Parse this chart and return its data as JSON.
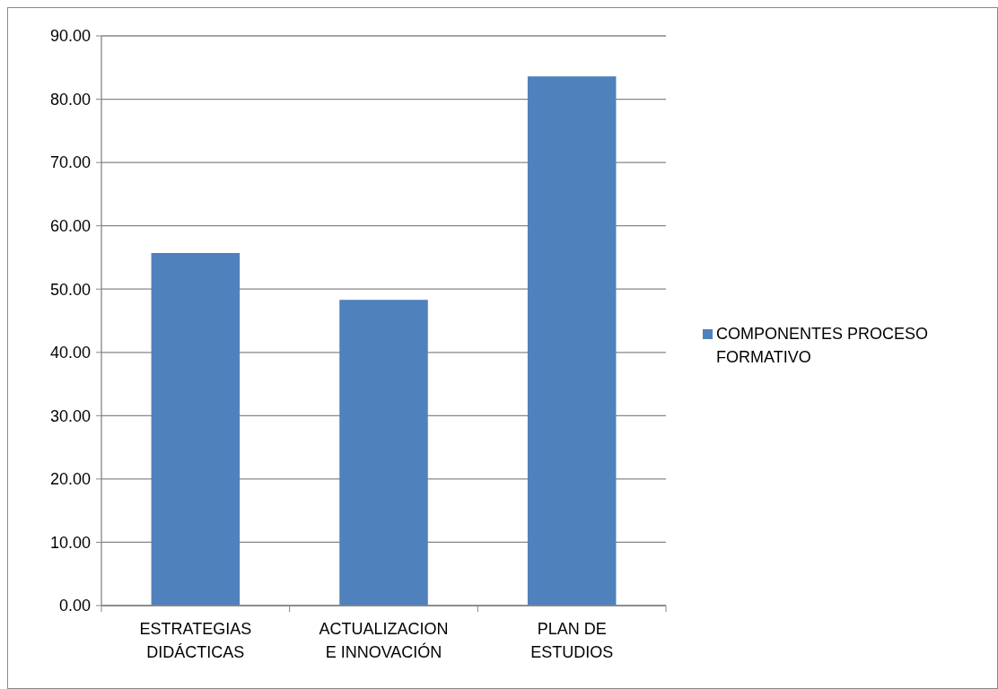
{
  "chart_data": {
    "type": "bar",
    "categories": [
      "ESTRATEGIAS DIDÁCTICAS",
      "ACTUALIZACION E INNOVACIÓN",
      "PLAN DE ESTUDIOS"
    ],
    "series": [
      {
        "name": "COMPONENTES PROCESO FORMATIVO",
        "color": "#4f81bd",
        "values": [
          55.7,
          48.3,
          83.6
        ]
      }
    ],
    "ylim": [
      0,
      90
    ],
    "yticks": [
      {
        "value": 0,
        "label": "0.00"
      },
      {
        "value": 10,
        "label": "10.00"
      },
      {
        "value": 20,
        "label": "20.00"
      },
      {
        "value": 30,
        "label": "30.00"
      },
      {
        "value": 40,
        "label": "40.00"
      },
      {
        "value": 50,
        "label": "50.00"
      },
      {
        "value": 60,
        "label": "60.00"
      },
      {
        "value": 70,
        "label": "70.00"
      },
      {
        "value": 80,
        "label": "80.00"
      },
      {
        "value": 90,
        "label": "90.00"
      }
    ],
    "grid": "y",
    "legend": "right"
  }
}
